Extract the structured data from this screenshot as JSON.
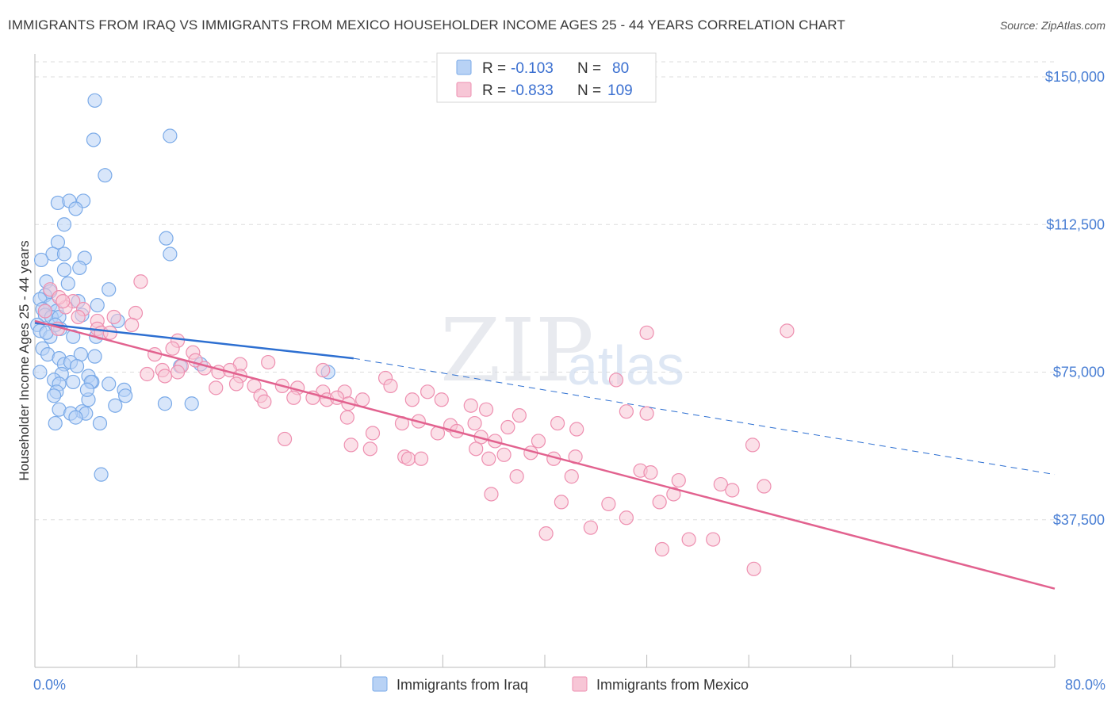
{
  "title": "IMMIGRANTS FROM IRAQ VS IMMIGRANTS FROM MEXICO HOUSEHOLDER INCOME AGES 25 - 44 YEARS CORRELATION CHART",
  "source": "Source: ZipAtlas.com",
  "watermark": {
    "zip": "ZIP",
    "atlas": "atlas"
  },
  "colors": {
    "iraq": "#7aaae8",
    "iraq_fill": "#b8d2f5",
    "iraq_line": "#2d6fd1",
    "mexico": "#ee8fb0",
    "mexico_fill": "#f7c6d6",
    "mexico_line": "#e2628f",
    "tick_text": "#4a7fd4",
    "grid": "#dddddd"
  },
  "legend": {
    "rows": [
      {
        "r_label": "R =",
        "r_value": "-0.103",
        "n_label": "N =",
        "n_value": "80"
      },
      {
        "r_label": "R =",
        "r_value": "-0.833",
        "n_label": "N =",
        "n_value": "109"
      }
    ]
  },
  "chart_data": {
    "type": "scatter",
    "ylabel": "Householder Income Ages 25 - 44 years",
    "xlim": [
      0,
      80
    ],
    "ylim": [
      0,
      150000
    ],
    "x_tick_labels": [
      "0.0%",
      "80.0%"
    ],
    "y_ticks": [
      37500,
      75000,
      112500,
      150000
    ],
    "y_tick_labels": [
      "$37,500",
      "$75,000",
      "$112,500",
      "$150,000"
    ],
    "grid": true,
    "legend_position": "bottom-center",
    "series": [
      {
        "name": "Immigrants from Iraq",
        "trend": {
          "x": [
            0,
            25
          ],
          "y": [
            87500,
            78500
          ],
          "dashed_extension_to_x": 80,
          "dashed_end_y": 49000
        },
        "points": [
          [
            4.7,
            144000
          ],
          [
            4.6,
            134000
          ],
          [
            10.6,
            135000
          ],
          [
            5.5,
            125000
          ],
          [
            1.8,
            118000
          ],
          [
            2.7,
            118500
          ],
          [
            3.8,
            118500
          ],
          [
            3.2,
            116500
          ],
          [
            2.3,
            112500
          ],
          [
            10.3,
            109000
          ],
          [
            1.8,
            108000
          ],
          [
            10.6,
            105000
          ],
          [
            1.4,
            105000
          ],
          [
            2.3,
            105000
          ],
          [
            3.9,
            104000
          ],
          [
            0.5,
            103500
          ],
          [
            3.5,
            101500
          ],
          [
            2.3,
            101000
          ],
          [
            0.9,
            98000
          ],
          [
            2.6,
            97500
          ],
          [
            5.8,
            96000
          ],
          [
            1.2,
            95500
          ],
          [
            0.8,
            94500
          ],
          [
            3.4,
            93000
          ],
          [
            0.4,
            93500
          ],
          [
            1.2,
            92000
          ],
          [
            4.9,
            92000
          ],
          [
            0.6,
            91000
          ],
          [
            0.8,
            90500
          ],
          [
            1.7,
            90500
          ],
          [
            0.8,
            89500
          ],
          [
            1.3,
            89000
          ],
          [
            1.9,
            89000
          ],
          [
            3.7,
            89500
          ],
          [
            6.5,
            88000
          ],
          [
            0.2,
            87000
          ],
          [
            2.0,
            86000
          ],
          [
            0.4,
            85500
          ],
          [
            1.2,
            84000
          ],
          [
            3.0,
            84000
          ],
          [
            4.8,
            84000
          ],
          [
            0.6,
            81000
          ],
          [
            1.0,
            79500
          ],
          [
            1.9,
            78500
          ],
          [
            3.6,
            79500
          ],
          [
            4.7,
            79000
          ],
          [
            2.3,
            77000
          ],
          [
            2.8,
            77500
          ],
          [
            3.3,
            76500
          ],
          [
            11.4,
            76500
          ],
          [
            0.4,
            75000
          ],
          [
            2.1,
            74500
          ],
          [
            13.0,
            77000
          ],
          [
            23.0,
            75000
          ],
          [
            4.2,
            74000
          ],
          [
            4.5,
            72500
          ],
          [
            1.5,
            73000
          ],
          [
            1.9,
            72000
          ],
          [
            3.0,
            72500
          ],
          [
            4.4,
            72500
          ],
          [
            5.8,
            72000
          ],
          [
            1.7,
            70000
          ],
          [
            1.5,
            69000
          ],
          [
            7.0,
            70500
          ],
          [
            7.1,
            69000
          ],
          [
            4.2,
            68000
          ],
          [
            10.2,
            67000
          ],
          [
            12.3,
            67000
          ],
          [
            1.9,
            65500
          ],
          [
            3.7,
            65000
          ],
          [
            6.3,
            66500
          ],
          [
            2.8,
            64500
          ],
          [
            4.0,
            64500
          ],
          [
            3.2,
            63500
          ],
          [
            1.6,
            62000
          ],
          [
            5.1,
            62000
          ],
          [
            4.1,
            70500
          ],
          [
            0.9,
            85000
          ],
          [
            1.6,
            87000
          ],
          [
            5.2,
            49000
          ]
        ]
      },
      {
        "name": "Immigrants from Mexico",
        "trend": {
          "x": [
            0,
            80
          ],
          "y": [
            88000,
            20000
          ]
        },
        "points": [
          [
            8.3,
            98000
          ],
          [
            1.2,
            96000
          ],
          [
            3.0,
            93000
          ],
          [
            2.4,
            91500
          ],
          [
            3.8,
            91000
          ],
          [
            7.9,
            90000
          ],
          [
            3.4,
            89000
          ],
          [
            6.2,
            89000
          ],
          [
            4.9,
            88000
          ],
          [
            7.6,
            87000
          ],
          [
            1.8,
            86000
          ],
          [
            4.9,
            86000
          ],
          [
            5.2,
            85000
          ],
          [
            5.9,
            85000
          ],
          [
            0.8,
            90500
          ],
          [
            1.9,
            94000
          ],
          [
            2.2,
            93000
          ],
          [
            48.0,
            85000
          ],
          [
            59.0,
            85500
          ],
          [
            11.2,
            83000
          ],
          [
            10.8,
            81000
          ],
          [
            12.4,
            80000
          ],
          [
            9.4,
            79500
          ],
          [
            12.6,
            78000
          ],
          [
            11.5,
            76500
          ],
          [
            13.3,
            76000
          ],
          [
            16.1,
            77000
          ],
          [
            18.3,
            77500
          ],
          [
            10.0,
            75500
          ],
          [
            11.2,
            75000
          ],
          [
            14.4,
            75000
          ],
          [
            8.8,
            74500
          ],
          [
            10.2,
            74000
          ],
          [
            15.3,
            75500
          ],
          [
            16.1,
            74000
          ],
          [
            22.6,
            75500
          ],
          [
            14.2,
            71000
          ],
          [
            17.2,
            71500
          ],
          [
            19.4,
            71500
          ],
          [
            27.5,
            73500
          ],
          [
            15.8,
            72000
          ],
          [
            20.6,
            71000
          ],
          [
            22.6,
            70000
          ],
          [
            24.3,
            70000
          ],
          [
            27.9,
            71500
          ],
          [
            17.7,
            69000
          ],
          [
            20.3,
            68500
          ],
          [
            21.8,
            68500
          ],
          [
            22.9,
            68000
          ],
          [
            23.7,
            68500
          ],
          [
            25.7,
            68000
          ],
          [
            29.6,
            68000
          ],
          [
            31.9,
            68000
          ],
          [
            30.8,
            70000
          ],
          [
            18.0,
            67500
          ],
          [
            24.6,
            67000
          ],
          [
            34.2,
            66500
          ],
          [
            35.4,
            65500
          ],
          [
            45.6,
            73000
          ],
          [
            46.4,
            65000
          ],
          [
            48.0,
            64500
          ],
          [
            38.0,
            64000
          ],
          [
            24.5,
            63500
          ],
          [
            28.8,
            62000
          ],
          [
            30.1,
            62500
          ],
          [
            32.6,
            61500
          ],
          [
            34.5,
            62000
          ],
          [
            37.1,
            61000
          ],
          [
            41.0,
            62000
          ],
          [
            42.5,
            60500
          ],
          [
            31.6,
            59500
          ],
          [
            33.1,
            60000
          ],
          [
            26.5,
            59500
          ],
          [
            35.0,
            58500
          ],
          [
            36.1,
            57500
          ],
          [
            39.5,
            57500
          ],
          [
            19.6,
            58000
          ],
          [
            24.8,
            56500
          ],
          [
            26.3,
            55500
          ],
          [
            34.6,
            55500
          ],
          [
            36.8,
            54000
          ],
          [
            38.9,
            54500
          ],
          [
            40.7,
            53000
          ],
          [
            42.4,
            53500
          ],
          [
            29.0,
            53500
          ],
          [
            29.3,
            53000
          ],
          [
            30.3,
            53000
          ],
          [
            35.6,
            53000
          ],
          [
            56.3,
            56500
          ],
          [
            37.8,
            48500
          ],
          [
            42.1,
            48500
          ],
          [
            47.5,
            50000
          ],
          [
            48.3,
            49500
          ],
          [
            50.5,
            47500
          ],
          [
            53.8,
            46500
          ],
          [
            54.7,
            45000
          ],
          [
            57.2,
            46000
          ],
          [
            35.8,
            44000
          ],
          [
            50.1,
            44000
          ],
          [
            41.3,
            42000
          ],
          [
            49.0,
            42000
          ],
          [
            45.0,
            41500
          ],
          [
            46.4,
            38000
          ],
          [
            43.6,
            35500
          ],
          [
            40.1,
            34000
          ],
          [
            49.2,
            30000
          ],
          [
            51.3,
            32500
          ],
          [
            53.2,
            32500
          ],
          [
            56.4,
            25000
          ]
        ]
      }
    ]
  },
  "bottom_legend": {
    "items": [
      "Immigrants from Iraq",
      "Immigrants from Mexico"
    ]
  }
}
